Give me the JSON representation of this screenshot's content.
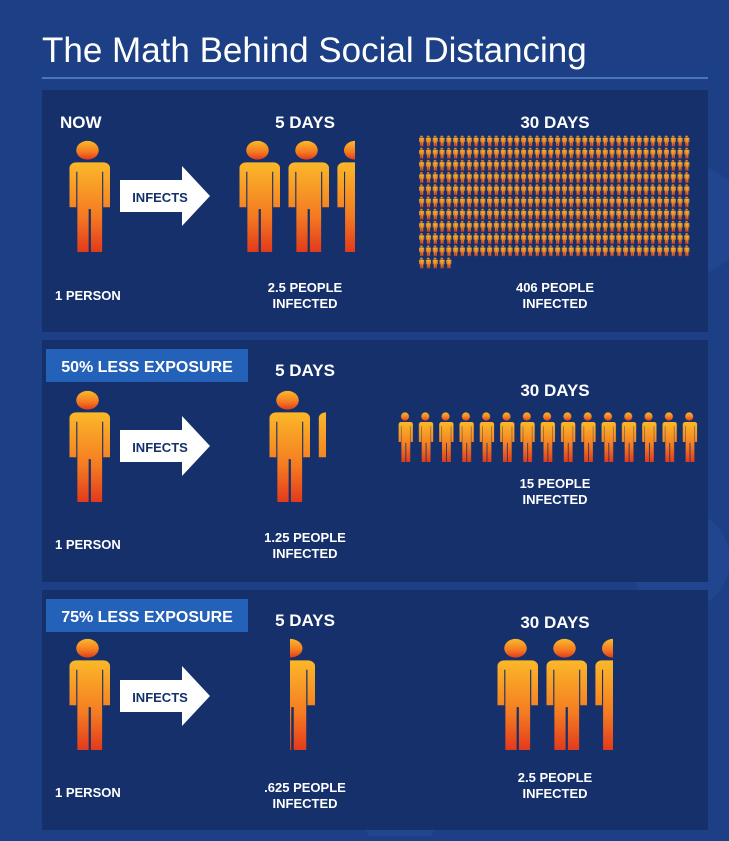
{
  "title": "The Math Behind Social Distancing",
  "panels": [
    {
      "label": "NOW",
      "action": "INFECTS",
      "start_caption": "1 PERSON",
      "day5": {
        "heading": "5 DAYS",
        "caption": [
          "2.5 PEOPLE",
          "INFECTED"
        ]
      },
      "day30": {
        "heading": "30 DAYS",
        "caption": [
          "406 PEOPLE",
          "INFECTED"
        ]
      }
    },
    {
      "label": "50% LESS EXPOSURE",
      "action": "INFECTS",
      "start_caption": "1 PERSON",
      "day5": {
        "heading": "5 DAYS",
        "caption": [
          "1.25 PEOPLE",
          "INFECTED"
        ]
      },
      "day30": {
        "heading": "30 DAYS",
        "caption": [
          "15 PEOPLE",
          "INFECTED"
        ]
      }
    },
    {
      "label": "75% LESS EXPOSURE",
      "action": "INFECTS",
      "start_caption": "1 PERSON",
      "day5": {
        "heading": "5 DAYS",
        "caption": [
          ".625 PEOPLE",
          "INFECTED"
        ]
      },
      "day30": {
        "heading": "30 DAYS",
        "caption": [
          "2.5 PEOPLE",
          "INFECTED"
        ]
      }
    }
  ]
}
